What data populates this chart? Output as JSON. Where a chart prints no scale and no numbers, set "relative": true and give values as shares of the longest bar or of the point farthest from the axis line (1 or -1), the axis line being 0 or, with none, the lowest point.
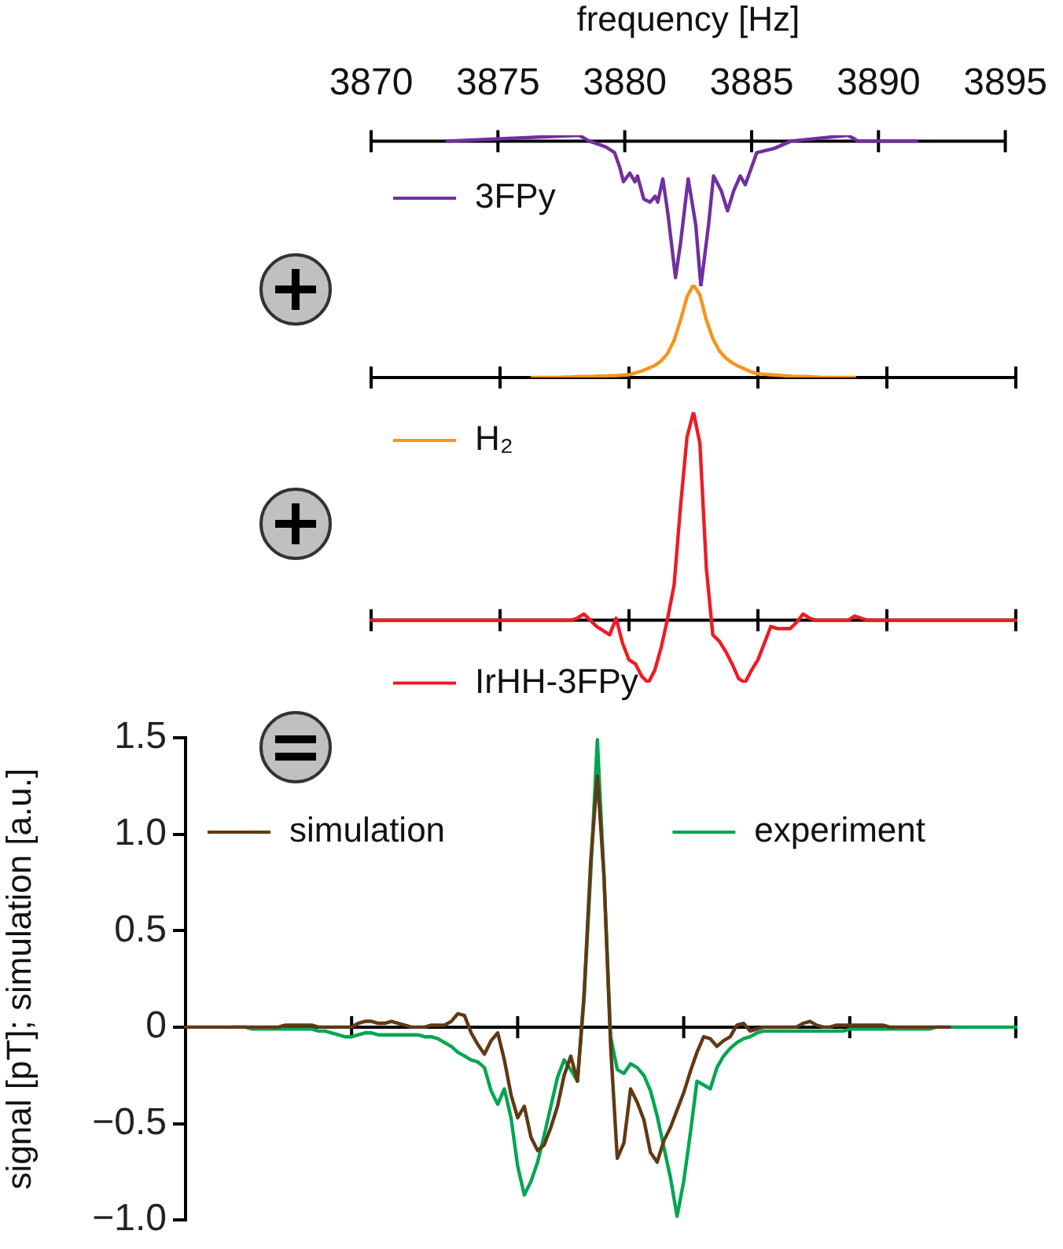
{
  "chart_data": [
    {
      "type": "line",
      "relative": true,
      "xlabel": "frequency [Hz]",
      "xlim": [
        3870,
        3895
      ],
      "xticks": [
        3870,
        3875,
        3880,
        3885,
        3890,
        3895
      ],
      "legend": "left",
      "marker": "none",
      "series": [
        {
          "name": "3FPy",
          "color": "#7030a0",
          "x": [
            3873,
            3878.2,
            3878.6,
            3879.25,
            3879.6,
            3879.8,
            3879.95,
            3880.2,
            3880.4,
            3880.5,
            3880.75,
            3881.0,
            3881.2,
            3881.3,
            3881.5,
            3881.7,
            3882.0,
            3882.2,
            3882.5,
            3882.8,
            3883.0,
            3883.3,
            3883.5,
            3883.8,
            3884.05,
            3884.3,
            3884.55,
            3884.75,
            3885.0,
            3885.2,
            3885.9,
            3886.55,
            3888.8,
            3889.2,
            3891.5
          ],
          "values": [
            0,
            0.04,
            0,
            -0.04,
            -0.08,
            -0.18,
            -0.28,
            -0.22,
            -0.28,
            -0.24,
            -0.4,
            -0.42,
            -0.38,
            -0.42,
            -0.26,
            -0.5,
            -0.94,
            -0.7,
            -0.26,
            -0.58,
            -1,
            -0.58,
            -0.24,
            -0.34,
            -0.48,
            -0.34,
            -0.24,
            -0.3,
            -0.18,
            -0.08,
            -0.05,
            0,
            0.04,
            0,
            0
          ]
        }
      ]
    },
    {
      "type": "line",
      "relative": true,
      "tick_labels": false,
      "legend": "bottom left",
      "marker": "none",
      "categories": [
        null,
        null,
        null,
        null,
        null,
        null,
        null,
        null,
        null,
        null,
        null,
        null,
        null,
        null,
        null,
        null,
        null,
        null,
        null,
        null,
        null,
        null,
        null,
        null,
        null,
        null,
        null,
        null,
        null,
        null,
        null,
        null,
        null,
        null,
        null,
        null,
        null,
        null,
        null,
        null,
        null,
        null,
        null,
        null,
        null,
        null,
        null,
        null,
        null,
        null,
        null,
        null,
        null,
        null,
        null,
        null,
        null,
        null,
        null,
        null,
        null,
        null,
        null,
        null,
        null,
        null,
        null,
        null,
        null,
        null,
        null,
        null,
        null,
        null,
        null,
        null,
        null,
        null,
        null,
        null,
        null,
        null,
        null,
        null,
        null,
        null,
        null,
        null,
        null,
        null,
        null,
        null,
        null,
        null,
        null,
        null,
        null,
        null,
        null,
        null,
        null
      ],
      "series": [
        {
          "name": "H₂",
          "color": "#f7941d",
          "values": [
            null,
            null,
            null,
            null,
            null,
            null,
            null,
            null,
            null,
            null,
            null,
            null,
            null,
            null,
            null,
            null,
            null,
            null,
            null,
            null,
            null,
            null,
            null,
            null,
            null,
            0,
            0,
            0,
            0,
            0,
            0.005,
            0.005,
            0.01,
            0.01,
            0.01,
            0.015,
            0.015,
            0.02,
            0.02,
            0.025,
            0.03,
            0.05,
            0.07,
            0.1,
            0.13,
            0.18,
            0.26,
            0.4,
            0.62,
            0.87,
            1,
            0.89,
            0.62,
            0.42,
            0.29,
            0.21,
            0.16,
            0.12,
            0.09,
            0.06,
            0.04,
            0.035,
            0.03,
            0.025,
            0.02,
            0.015,
            0.01,
            0.01,
            0.01,
            0.005,
            0,
            0,
            0,
            0,
            0,
            0,
            null,
            null,
            null,
            null,
            null,
            null,
            null,
            null,
            null,
            null,
            null,
            null,
            null,
            null,
            null,
            null,
            null,
            null,
            null,
            null,
            null,
            null,
            null,
            null,
            null
          ]
        }
      ]
    },
    {
      "type": "line",
      "relative": true,
      "tick_labels": false,
      "legend": "bottom left",
      "marker": "none",
      "categories": [
        null,
        null,
        null,
        null,
        null,
        null,
        null,
        null,
        null,
        null,
        null,
        null,
        null,
        null,
        null,
        null,
        null,
        null,
        null,
        null,
        null,
        null,
        null,
        null,
        null,
        null,
        null,
        null,
        null,
        null,
        null,
        null,
        null,
        null,
        null,
        null,
        null,
        null,
        null,
        null,
        null,
        null,
        null,
        null,
        null,
        null,
        null,
        null,
        null,
        null,
        null,
        null,
        null,
        null,
        null,
        null,
        null,
        null,
        null,
        null,
        null,
        null,
        null,
        null,
        null,
        null,
        null,
        null,
        null,
        null,
        null,
        null,
        null,
        null,
        null,
        null,
        null,
        null,
        null,
        null,
        null,
        null,
        null,
        null,
        null,
        null,
        null,
        null,
        null,
        null,
        null,
        null,
        null,
        null,
        null,
        null,
        null,
        null,
        null,
        null,
        null
      ],
      "series": [
        {
          "name": "IrHH-3FPy",
          "color": "#ed1c24",
          "values": [
            0,
            0,
            0,
            0,
            0,
            0,
            0,
            0,
            0,
            0,
            0,
            0,
            0,
            0,
            0,
            0,
            0,
            0,
            0,
            0,
            0,
            0,
            0,
            0,
            0,
            0,
            0,
            0,
            0,
            0,
            0,
            0,
            0.01,
            0.03,
            0,
            -0.03,
            -0.05,
            -0.07,
            0.01,
            -0.11,
            -0.19,
            -0.21,
            -0.27,
            -0.3,
            -0.24,
            -0.13,
            0.01,
            0.17,
            0.55,
            0.88,
            1,
            0.85,
            0.25,
            -0.07,
            -0.1,
            -0.15,
            -0.21,
            -0.28,
            -0.3,
            -0.24,
            -0.19,
            -0.11,
            -0.03,
            -0.04,
            -0.04,
            -0.04,
            -0.01,
            0.03,
            0.01,
            0,
            0,
            0,
            0,
            0,
            0,
            0.02,
            0.01,
            0,
            0,
            0,
            0,
            0,
            0,
            0,
            0,
            0,
            0,
            0,
            0,
            0,
            0,
            0,
            0,
            0,
            0,
            0,
            0,
            0,
            0,
            0,
            0
          ]
        }
      ]
    },
    {
      "type": "line",
      "ylabel": "signal [pT]; simulation [a.u.]",
      "tick_labels": "y",
      "ylim": [
        -1,
        1.5
      ],
      "yticks": [
        {
          "value": -1,
          "label": "−1.0"
        },
        {
          "value": -0.5,
          "label": "−0.5"
        },
        0,
        0.5,
        {
          "value": 1,
          "label": "1.0"
        },
        1.5
      ],
      "legend": "top",
      "marker": "none",
      "categories": [
        null,
        null,
        null,
        null,
        null,
        null,
        null,
        null,
        null,
        null,
        null,
        null,
        null,
        null,
        null,
        null,
        null,
        null,
        null,
        null,
        null,
        null,
        null,
        null,
        null,
        null,
        null,
        null,
        null,
        null,
        null,
        null,
        null,
        null,
        null,
        null,
        null,
        null,
        null,
        null,
        null,
        null,
        null,
        null,
        null,
        null,
        null,
        null,
        null,
        null,
        null,
        null,
        null,
        null,
        null,
        null,
        null,
        null,
        null,
        null,
        null,
        null,
        null,
        null,
        null,
        null,
        null,
        null,
        null,
        null,
        null,
        null,
        null,
        null,
        null,
        null,
        null,
        null,
        null,
        null,
        null,
        null,
        null,
        null,
        null,
        null,
        null,
        null,
        null,
        null,
        null,
        null,
        null,
        null,
        null,
        null,
        null,
        null,
        null,
        null,
        null,
        null,
        null,
        null,
        null,
        null,
        null,
        null,
        null,
        null,
        null,
        null,
        null,
        null,
        null,
        null,
        null,
        null,
        null,
        null,
        null,
        null,
        null,
        null,
        null,
        null
      ],
      "series": [
        {
          "name": "simulation",
          "color": "#603913",
          "values": [
            0,
            0,
            0,
            0,
            0,
            0,
            0,
            0,
            0,
            0,
            0,
            0,
            0,
            0,
            0,
            0.01,
            0.01,
            0.01,
            0.01,
            0.01,
            0,
            0,
            0,
            0,
            0,
            0,
            0.02,
            0.03,
            0.03,
            0.02,
            0.02,
            0.03,
            0.02,
            0.01,
            0,
            0,
            0,
            0.01,
            0.01,
            0.01,
            0.03,
            0.07,
            0.06,
            -0.03,
            -0.09,
            -0.14,
            -0.07,
            -0.03,
            -0.17,
            -0.35,
            -0.47,
            -0.41,
            -0.57,
            -0.64,
            -0.61,
            -0.52,
            -0.41,
            -0.25,
            -0.15,
            -0.28,
            0.17,
            0.86,
            1.3,
            0.78,
            -0.1,
            -0.68,
            -0.6,
            -0.32,
            -0.39,
            -0.48,
            -0.65,
            -0.7,
            -0.59,
            -0.52,
            -0.43,
            -0.34,
            -0.23,
            -0.13,
            -0.05,
            -0.06,
            -0.1,
            -0.07,
            -0.05,
            0.01,
            0.02,
            -0.02,
            -0.01,
            0,
            0,
            0,
            0,
            0,
            0,
            0.02,
            0.03,
            0.01,
            0,
            0,
            0.01,
            0.01,
            0.01,
            0.01,
            0.01,
            0.01,
            0.01,
            0.01,
            0,
            0,
            0,
            0,
            0,
            0,
            0,
            0,
            0,
            0,
            null,
            null,
            null,
            null,
            null,
            null,
            null,
            null,
            null,
            null
          ]
        },
        {
          "name": "experiment",
          "color": "#00a651",
          "values": [
            null,
            null,
            null,
            null,
            null,
            null,
            null,
            0,
            0,
            0,
            -0.01,
            -0.01,
            -0.01,
            -0.01,
            -0.01,
            -0.01,
            -0.01,
            -0.01,
            -0.01,
            -0.01,
            -0.02,
            -0.02,
            -0.03,
            -0.04,
            -0.05,
            -0.05,
            -0.04,
            -0.03,
            -0.03,
            -0.04,
            -0.04,
            -0.04,
            -0.04,
            -0.04,
            -0.04,
            -0.04,
            -0.05,
            -0.05,
            -0.06,
            -0.08,
            -0.1,
            -0.13,
            -0.15,
            -0.17,
            -0.18,
            -0.21,
            -0.33,
            -0.4,
            -0.32,
            -0.47,
            -0.72,
            -0.87,
            -0.8,
            -0.7,
            -0.56,
            -0.41,
            -0.26,
            -0.17,
            -0.22,
            -0.28,
            0.15,
            0.8,
            1.49,
            0.78,
            -0.05,
            -0.22,
            -0.24,
            -0.19,
            -0.21,
            -0.25,
            -0.33,
            -0.46,
            -0.62,
            -0.78,
            -0.98,
            -0.8,
            -0.55,
            -0.28,
            -0.3,
            -0.32,
            -0.21,
            -0.15,
            -0.11,
            -0.08,
            -0.06,
            -0.05,
            -0.03,
            -0.02,
            -0.02,
            -0.02,
            -0.02,
            -0.02,
            -0.02,
            -0.02,
            -0.02,
            -0.02,
            -0.02,
            -0.02,
            -0.02,
            -0.02,
            -0.01,
            -0.01,
            -0.01,
            -0.01,
            -0.01,
            -0.01,
            -0.01,
            -0.01,
            -0.01,
            -0.01,
            -0.01,
            -0.01,
            -0.01,
            0,
            0,
            0,
            0,
            0,
            0,
            0,
            0,
            0,
            0,
            0,
            0,
            0
          ]
        }
      ]
    }
  ]
}
